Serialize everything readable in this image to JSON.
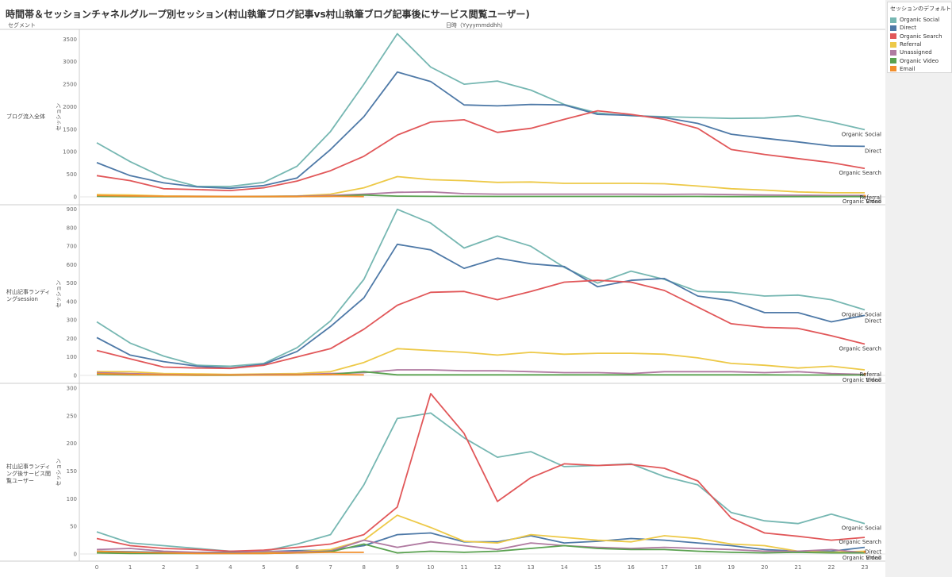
{
  "title": "時間帯＆セッションチャネルグループ別セッション(村山執筆ブログ記事vs村山執筆ブログ記事後にサービス閲覧ユーザー)",
  "segment_header": "セグメント",
  "date_header": "日時（Yyyymmddhh）",
  "legend": {
    "title": "セッションのデフォルト...",
    "items": [
      {
        "label": "Organic Social",
        "color": "#76b7b2"
      },
      {
        "label": "Direct",
        "color": "#4e79a7"
      },
      {
        "label": "Organic Search",
        "color": "#e15759"
      },
      {
        "label": "Referral",
        "color": "#edc948"
      },
      {
        "label": "Unassigned",
        "color": "#b07aa1"
      },
      {
        "label": "Organic Video",
        "color": "#59a14f"
      },
      {
        "label": "Email",
        "color": "#f28e2b"
      }
    ]
  },
  "chart_data": [
    {
      "type": "line",
      "segment": "ブログ流入全体",
      "ylabel": "セッション",
      "ylim": [
        0,
        3700
      ],
      "yticks": [
        0,
        500,
        1000,
        1500,
        2000,
        2500,
        3000,
        3500
      ],
      "x": [
        0,
        1,
        2,
        3,
        4,
        5,
        6,
        7,
        8,
        9,
        10,
        11,
        12,
        13,
        14,
        15,
        16,
        17,
        18,
        19,
        20,
        21,
        22,
        23
      ],
      "series": [
        {
          "name": "Organic Social",
          "color": "#76b7b2",
          "values": [
            1200,
            780,
            430,
            230,
            230,
            320,
            680,
            1450,
            2500,
            3620,
            2880,
            2500,
            2570,
            2370,
            2050,
            1860,
            1800,
            1780,
            1760,
            1740,
            1750,
            1800,
            1660,
            1490
          ],
          "end_label": "Organic Social"
        },
        {
          "name": "Direct",
          "color": "#4e79a7",
          "values": [
            760,
            470,
            310,
            220,
            190,
            250,
            420,
            1050,
            1780,
            2770,
            2560,
            2040,
            2020,
            2050,
            2040,
            1830,
            1810,
            1760,
            1630,
            1390,
            1300,
            1220,
            1130,
            1120
          ],
          "end_label": "Direct"
        },
        {
          "name": "Organic Search",
          "color": "#e15759",
          "values": [
            470,
            360,
            180,
            160,
            140,
            200,
            350,
            580,
            900,
            1370,
            1660,
            1710,
            1430,
            1520,
            1720,
            1910,
            1830,
            1720,
            1520,
            1050,
            940,
            850,
            760,
            630
          ],
          "end_label": "Organic Search"
        },
        {
          "name": "Referral",
          "color": "#edc948",
          "values": [
            50,
            40,
            20,
            15,
            10,
            12,
            20,
            60,
            200,
            450,
            380,
            360,
            320,
            330,
            300,
            300,
            300,
            290,
            240,
            180,
            150,
            110,
            90,
            90
          ],
          "end_label": "Referral"
        },
        {
          "name": "Unassigned",
          "color": "#b07aa1",
          "values": [
            20,
            15,
            10,
            8,
            5,
            8,
            15,
            30,
            60,
            100,
            110,
            70,
            60,
            60,
            60,
            60,
            60,
            55,
            60,
            50,
            40,
            35,
            30,
            30
          ],
          "end_label": ""
        },
        {
          "name": "Organic Video",
          "color": "#59a14f",
          "values": [
            10,
            5,
            3,
            2,
            2,
            3,
            5,
            10,
            40,
            15,
            10,
            10,
            8,
            8,
            8,
            8,
            8,
            8,
            8,
            6,
            6,
            6,
            5,
            5
          ],
          "end_label": "Organic Video"
        },
        {
          "name": "Email",
          "color": "#f28e2b",
          "values": [
            30,
            20,
            10,
            5,
            5,
            5,
            5,
            10,
            5,
            null,
            null,
            null,
            null,
            null,
            null,
            null,
            null,
            null,
            null,
            null,
            null,
            null,
            null,
            20
          ],
          "end_label": "Email"
        }
      ]
    },
    {
      "type": "line",
      "segment": "村山記事ランディングsession",
      "ylabel": "セッション",
      "ylim": [
        0,
        920
      ],
      "yticks": [
        0,
        100,
        200,
        300,
        400,
        500,
        600,
        700,
        800,
        900
      ],
      "x": [
        0,
        1,
        2,
        3,
        4,
        5,
        6,
        7,
        8,
        9,
        10,
        11,
        12,
        13,
        14,
        15,
        16,
        17,
        18,
        19,
        20,
        21,
        22,
        23
      ],
      "series": [
        {
          "name": "Organic Social",
          "color": "#76b7b2",
          "values": [
            290,
            175,
            105,
            55,
            50,
            65,
            150,
            295,
            520,
            900,
            825,
            690,
            755,
            700,
            585,
            500,
            565,
            520,
            455,
            450,
            430,
            435,
            410,
            355
          ],
          "end_label": "Organic Social"
        },
        {
          "name": "Direct",
          "color": "#4e79a7",
          "values": [
            205,
            110,
            75,
            50,
            40,
            60,
            130,
            265,
            420,
            710,
            680,
            580,
            635,
            605,
            590,
            480,
            515,
            525,
            430,
            405,
            340,
            340,
            290,
            325
          ],
          "end_label": "Direct"
        },
        {
          "name": "Organic Search",
          "color": "#e15759",
          "values": [
            135,
            90,
            45,
            40,
            38,
            55,
            100,
            145,
            250,
            380,
            450,
            455,
            410,
            455,
            505,
            515,
            505,
            460,
            370,
            280,
            260,
            255,
            215,
            170
          ],
          "end_label": "Organic Search"
        },
        {
          "name": "Referral",
          "color": "#edc948",
          "values": [
            20,
            20,
            10,
            8,
            5,
            8,
            10,
            20,
            70,
            145,
            135,
            125,
            110,
            125,
            115,
            120,
            120,
            115,
            95,
            65,
            55,
            40,
            50,
            30
          ],
          "end_label": "Referral"
        },
        {
          "name": "Unassigned",
          "color": "#b07aa1",
          "values": [
            15,
            10,
            5,
            3,
            3,
            5,
            5,
            10,
            15,
            30,
            30,
            25,
            25,
            20,
            15,
            15,
            10,
            20,
            20,
            20,
            15,
            20,
            10,
            5
          ],
          "end_label": ""
        },
        {
          "name": "Organic Video",
          "color": "#59a14f",
          "values": [
            5,
            3,
            2,
            1,
            1,
            2,
            3,
            5,
            20,
            3,
            3,
            3,
            3,
            3,
            3,
            3,
            3,
            3,
            3,
            3,
            3,
            2,
            2,
            2
          ],
          "end_label": "Organic Video"
        },
        {
          "name": "Email",
          "color": "#f28e2b",
          "values": [
            10,
            5,
            3,
            2,
            2,
            2,
            3,
            5,
            3,
            null,
            null,
            null,
            null,
            null,
            null,
            null,
            null,
            null,
            null,
            null,
            null,
            null,
            null,
            8
          ],
          "end_label": "Email"
        }
      ]
    },
    {
      "type": "line",
      "segment": "村山記事ランディング後サービス閲覧ユーザー",
      "ylabel": "セッション",
      "ylim": [
        0,
        300
      ],
      "yticks": [
        0,
        50,
        100,
        150,
        200,
        250,
        300
      ],
      "x": [
        0,
        1,
        2,
        3,
        4,
        5,
        6,
        7,
        8,
        9,
        10,
        11,
        12,
        13,
        14,
        15,
        16,
        17,
        18,
        19,
        20,
        21,
        22,
        23
      ],
      "series": [
        {
          "name": "Organic Social",
          "color": "#76b7b2",
          "values": [
            40,
            20,
            15,
            10,
            5,
            5,
            18,
            35,
            125,
            245,
            255,
            210,
            175,
            185,
            158,
            160,
            163,
            140,
            125,
            75,
            60,
            55,
            72,
            55
          ],
          "end_label": "Organic Social"
        },
        {
          "name": "Organic Search",
          "color": "#e15759",
          "values": [
            28,
            15,
            10,
            8,
            5,
            7,
            12,
            18,
            35,
            85,
            290,
            218,
            95,
            138,
            163,
            160,
            162,
            155,
            132,
            65,
            38,
            32,
            25,
            30
          ],
          "end_label": "Organic Search"
        },
        {
          "name": "Direct",
          "color": "#4e79a7",
          "values": [
            5,
            4,
            3,
            3,
            3,
            4,
            6,
            7,
            15,
            35,
            38,
            22,
            22,
            33,
            20,
            23,
            28,
            25,
            20,
            15,
            8,
            5,
            5,
            12
          ],
          "end_label": "Direct"
        },
        {
          "name": "Referral",
          "color": "#edc948",
          "values": [
            3,
            2,
            2,
            2,
            2,
            2,
            4,
            8,
            25,
            70,
            48,
            23,
            20,
            35,
            30,
            25,
            22,
            33,
            28,
            18,
            15,
            5,
            3,
            5
          ],
          "end_label": ""
        },
        {
          "name": "Unassigned",
          "color": "#b07aa1",
          "values": [
            8,
            10,
            5,
            3,
            2,
            5,
            4,
            5,
            25,
            12,
            22,
            15,
            8,
            20,
            15,
            12,
            10,
            12,
            10,
            8,
            5,
            5,
            8,
            2
          ],
          "end_label": ""
        },
        {
          "name": "Organic Video",
          "color": "#59a14f",
          "values": [
            2,
            1,
            1,
            1,
            1,
            1,
            2,
            4,
            18,
            2,
            5,
            3,
            5,
            10,
            15,
            10,
            8,
            8,
            5,
            3,
            2,
            3,
            2,
            2
          ],
          "end_label": "Organic Video"
        },
        {
          "name": "Email",
          "color": "#f28e2b",
          "values": [
            5,
            3,
            2,
            1,
            1,
            1,
            2,
            3,
            3,
            null,
            null,
            null,
            null,
            null,
            null,
            null,
            null,
            null,
            null,
            null,
            null,
            null,
            null,
            4
          ],
          "end_label": "Email"
        }
      ]
    }
  ]
}
